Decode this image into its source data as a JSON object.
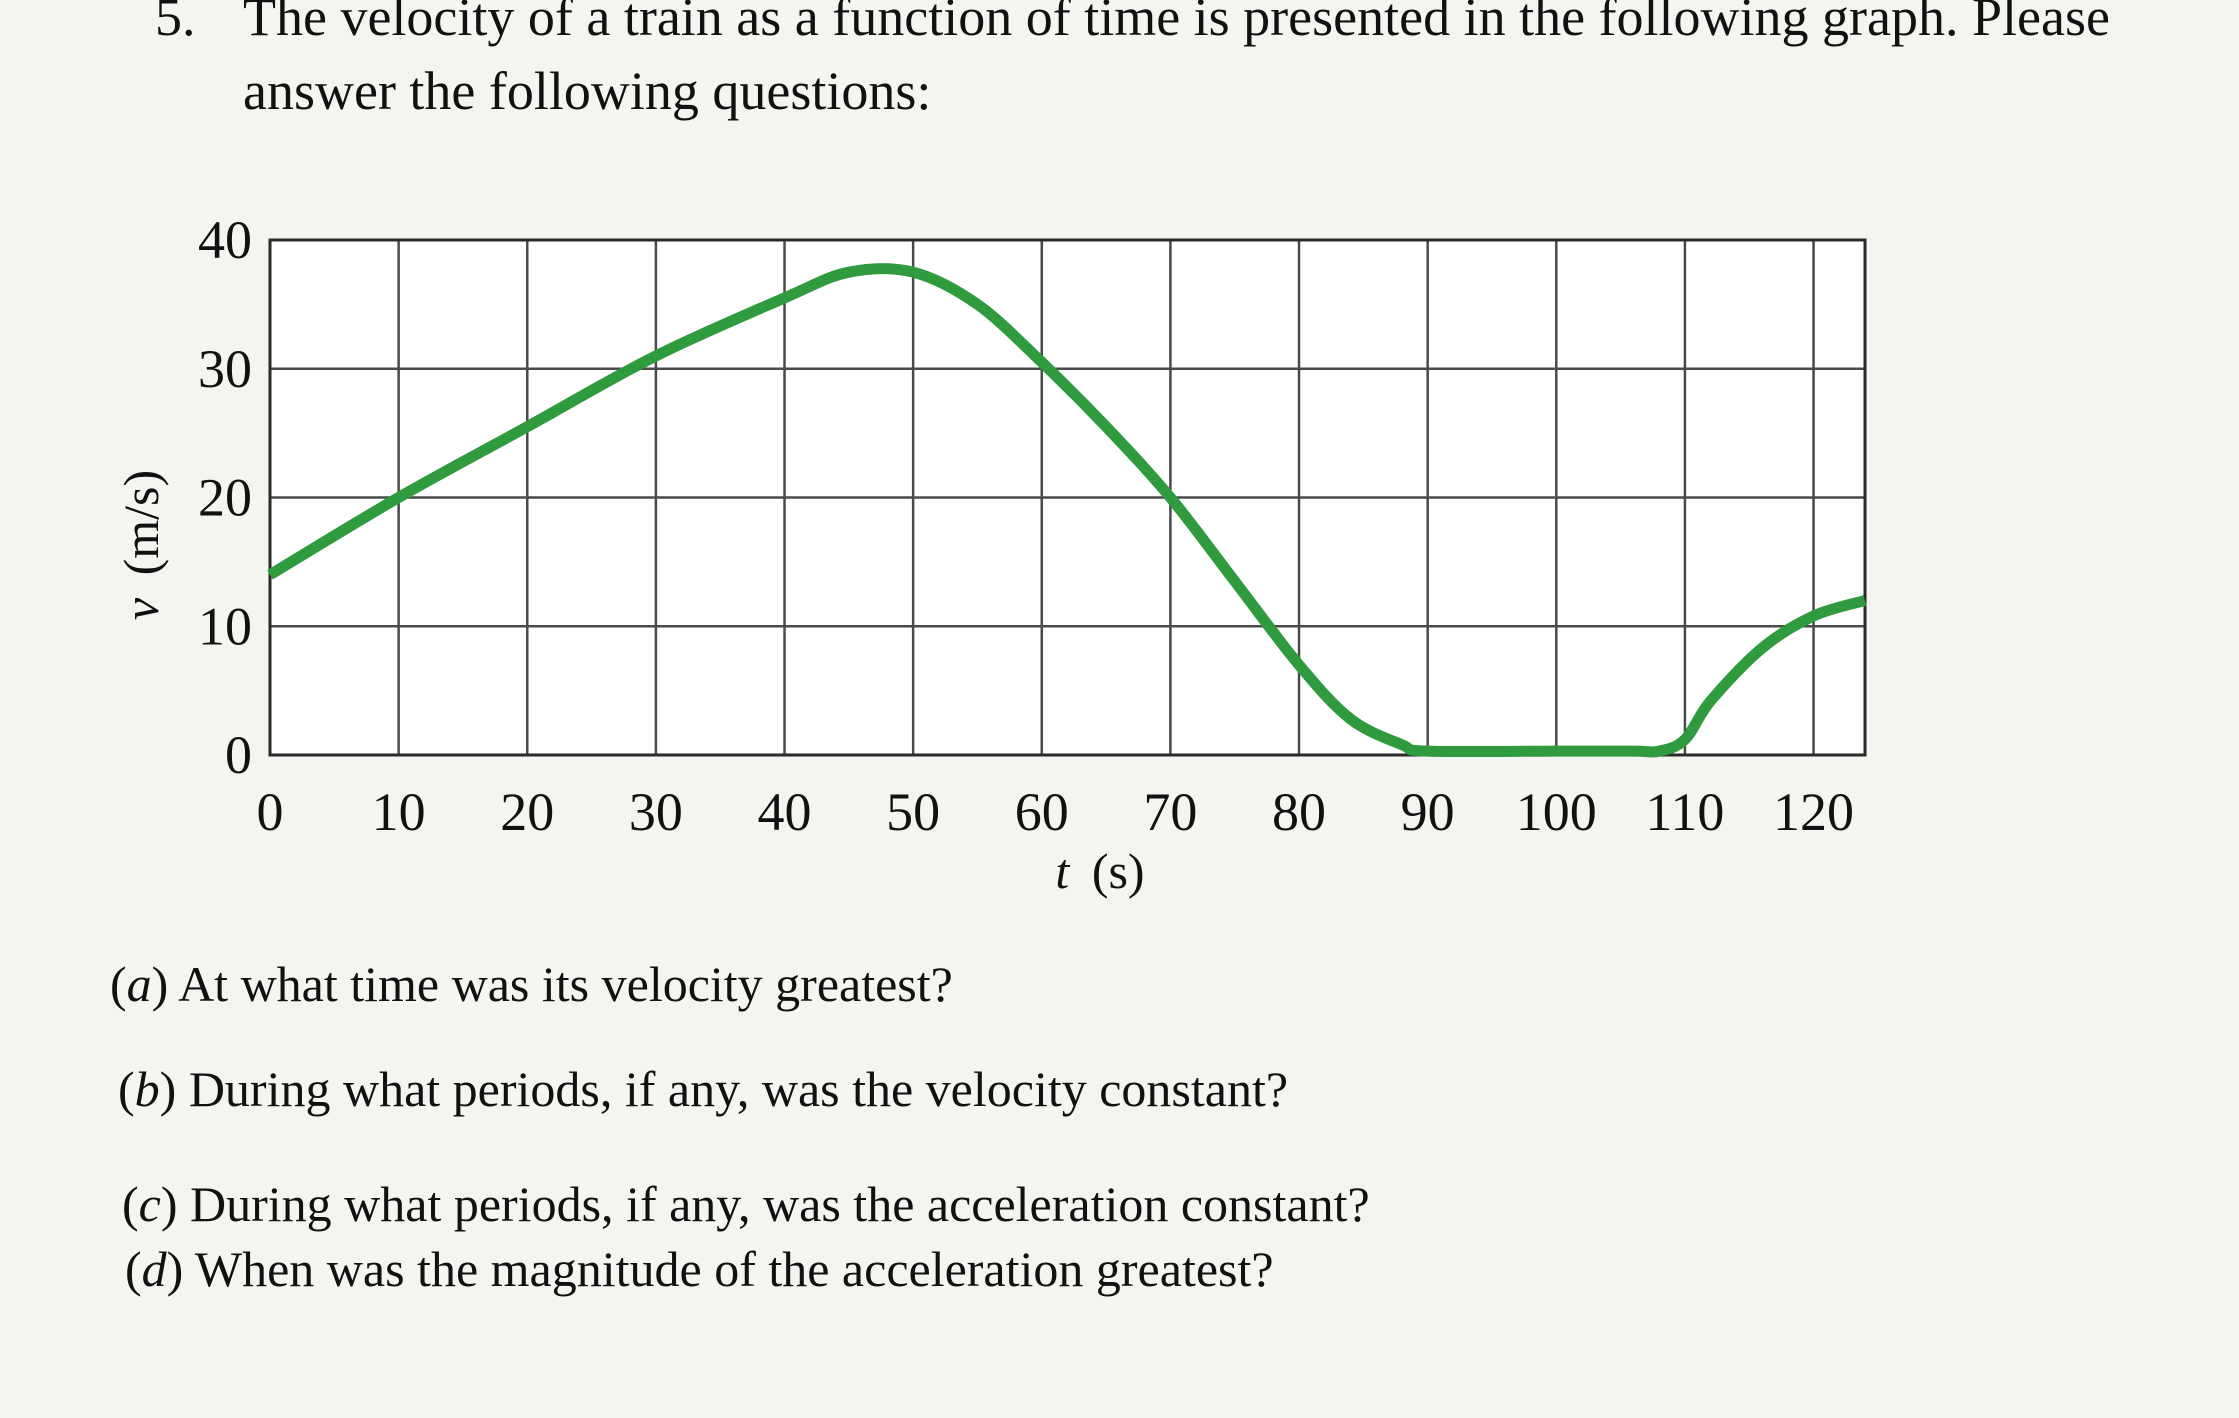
{
  "problem": {
    "number": "5.",
    "text": "The velocity of a train as a function of time is presented in the following graph. Please answer the following questions:"
  },
  "chart_data": {
    "type": "line",
    "title": "",
    "xlabel_var": "t",
    "xlabel_unit": "(s)",
    "ylabel_var": "v",
    "ylabel_unit": "(m/s)",
    "xlim": [
      0,
      124
    ],
    "ylim": [
      0,
      40
    ],
    "xticks": [
      "0",
      "10",
      "20",
      "30",
      "40",
      "50",
      "60",
      "70",
      "80",
      "90",
      "100",
      "110",
      "120"
    ],
    "yticks": [
      "0",
      "10",
      "20",
      "30",
      "40"
    ],
    "grid": true,
    "series": [
      {
        "color": "#2f9a3e",
        "x": [
          0,
          10,
          20,
          30,
          40,
          45,
          50,
          55,
          60,
          65,
          70,
          75,
          80,
          84,
          88,
          90,
          100,
          106,
          108,
          110,
          112,
          116,
          120,
          124
        ],
        "y": [
          14,
          20,
          25.5,
          31,
          35.5,
          37.5,
          37.5,
          35,
          30.5,
          25.5,
          20,
          13.5,
          7,
          2.8,
          0.8,
          0.3,
          0.3,
          0.3,
          0.3,
          1.2,
          4.2,
          8.3,
          10.8,
          12
        ]
      }
    ]
  },
  "questions": [
    {
      "letter": "a",
      "text": "At what time was its velocity greatest?"
    },
    {
      "letter": "b",
      "text": "During what periods, if any, was the velocity constant?"
    },
    {
      "letter": "c",
      "text": "During what periods, if any, was the acceleration constant?"
    },
    {
      "letter": "d",
      "text": "When was the magnitude of the acceleration greatest?"
    }
  ]
}
